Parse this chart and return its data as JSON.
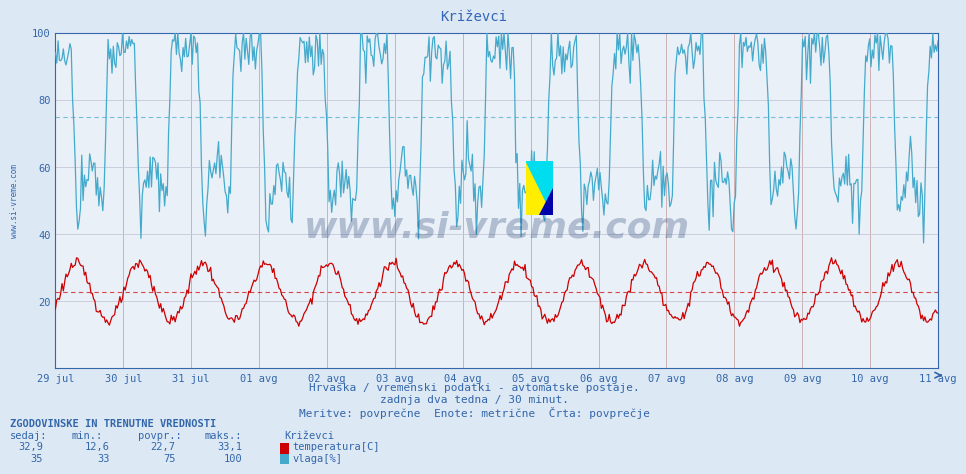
{
  "title": "Križevci",
  "bg_color": "#dce8f4",
  "plot_bg_color": "#eaf0f8",
  "grid_color_v": "#c8a8a8",
  "grid_color_h": "#c8c8d8",
  "temp_color": "#cc0000",
  "humid_color": "#44aacc",
  "avg_temp": 22.7,
  "avg_humid": 75,
  "ylim": [
    0,
    100
  ],
  "yticks": [
    20,
    40,
    60,
    80,
    100
  ],
  "label_color": "#3366aa",
  "title_color": "#3366bb",
  "watermark_color": "#1a3a6a",
  "x_labels": [
    "29 jul",
    "30 jul",
    "31 jul",
    "01 avg",
    "02 avg",
    "03 avg",
    "04 avg",
    "05 avg",
    "06 avg",
    "07 avg",
    "08 avg",
    "09 avg",
    "10 avg",
    "11 avg"
  ],
  "subtitle1": "Hrvaška / vremenski podatki - avtomatske postaje.",
  "subtitle2": "zadnja dva tedna / 30 minut.",
  "subtitle3": "Meritve: povprečne  Enote: metrične  Črta: povprečje",
  "table_header": "ZGODOVINSKE IN TRENUTNE VREDNOSTI",
  "temp_row": [
    "32,9",
    "12,6",
    "22,7",
    "33,1",
    "temperatura[C]"
  ],
  "humid_row": [
    "35",
    "33",
    "75",
    "100",
    "vlaga[%]"
  ],
  "station_name": "Križevci",
  "watermark": "www.si-vreme.com",
  "n_points": 672
}
